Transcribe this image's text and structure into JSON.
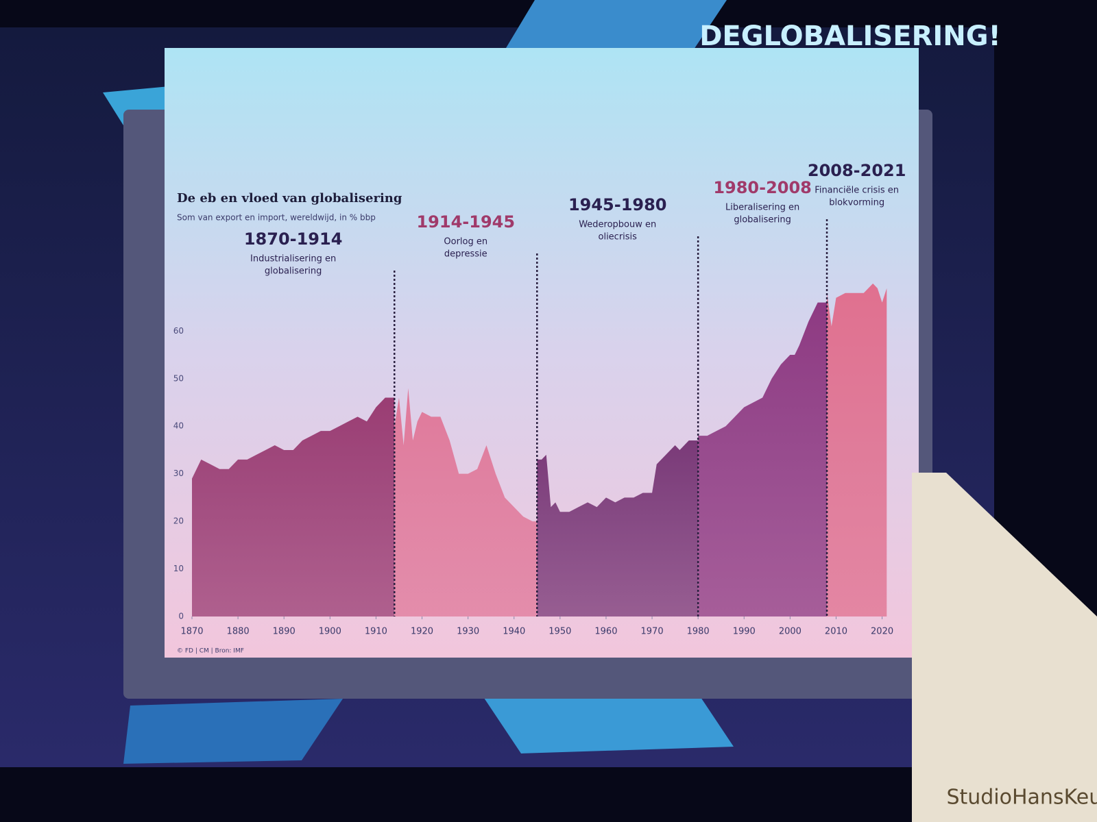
{
  "slide_heading": "DEGLOBALISERING!",
  "watermark": "StudioHansKeur",
  "chart_data": {
    "type": "area",
    "title": "De eb en vloed van globalisering",
    "subtitle": "Som van export en import, wereldwijd, in % bbp",
    "source": "© FD | CM | Bron: IMF",
    "x": [
      1870,
      1872,
      1874,
      1876,
      1878,
      1880,
      1882,
      1884,
      1886,
      1888,
      1890,
      1892,
      1894,
      1896,
      1898,
      1900,
      1902,
      1904,
      1906,
      1908,
      1910,
      1912,
      1913,
      1914,
      1915,
      1916,
      1917,
      1918,
      1919,
      1920,
      1922,
      1924,
      1926,
      1928,
      1930,
      1932,
      1934,
      1936,
      1938,
      1940,
      1942,
      1944,
      1945,
      1946,
      1947,
      1948,
      1949,
      1950,
      1952,
      1954,
      1956,
      1958,
      1960,
      1962,
      1964,
      1966,
      1968,
      1970,
      1971,
      1973,
      1975,
      1976,
      1978,
      1980,
      1982,
      1984,
      1986,
      1988,
      1990,
      1992,
      1994,
      1996,
      1998,
      2000,
      2001,
      2002,
      2004,
      2006,
      2008,
      2009,
      2010,
      2012,
      2014,
      2016,
      2018,
      2019,
      2020,
      2021
    ],
    "values": [
      29,
      33,
      32,
      31,
      31,
      33,
      33,
      34,
      35,
      36,
      35,
      35,
      37,
      38,
      39,
      39,
      40,
      41,
      42,
      41,
      44,
      46,
      46,
      40,
      46,
      36,
      48,
      37,
      41,
      43,
      42,
      42,
      37,
      30,
      30,
      31,
      36,
      30,
      25,
      23,
      21,
      20,
      33,
      33,
      34,
      23,
      24,
      22,
      22,
      23,
      24,
      23,
      25,
      24,
      25,
      25,
      26,
      26,
      32,
      34,
      36,
      35,
      37,
      38,
      38,
      39,
      40,
      42,
      44,
      45,
      46,
      50,
      53,
      55,
      55,
      57,
      62,
      66,
      68,
      61,
      67,
      68,
      68,
      68,
      70,
      69,
      66,
      69
    ],
    "periods": [
      {
        "label": "1870-1914",
        "subtitle": [
          "Industrialisering en",
          "globalisering"
        ],
        "start": 1870,
        "end": 1914,
        "color": "#9a3d73"
      },
      {
        "label": "1914-1945",
        "subtitle": [
          "Oorlog en",
          "depressie"
        ],
        "start": 1914,
        "end": 1945,
        "color": "#e0799a"
      },
      {
        "label": "1945-1980",
        "subtitle": [
          "Wederopbouw en",
          "oliecrisis"
        ],
        "start": 1945,
        "end": 1980,
        "color": "#7a3a78"
      },
      {
        "label": "1980-2008",
        "subtitle": [
          "Liberalisering en",
          "globalisering"
        ],
        "start": 1980,
        "end": 2008,
        "color": "#8e3a82"
      },
      {
        "label": "2008-2021",
        "subtitle": [
          "Financiële crisis en",
          "blokvorming"
        ],
        "start": 2008,
        "end": 2021,
        "color": "#e0708f"
      }
    ],
    "xlim": [
      1870,
      2022
    ],
    "xticks": [
      1870,
      1880,
      1890,
      1900,
      1910,
      1920,
      1930,
      1940,
      1950,
      1960,
      1970,
      1980,
      1990,
      2000,
      2010,
      2020
    ],
    "ylim": [
      0,
      72
    ],
    "yticks": [
      0,
      10,
      20,
      30,
      40,
      50,
      60
    ]
  }
}
